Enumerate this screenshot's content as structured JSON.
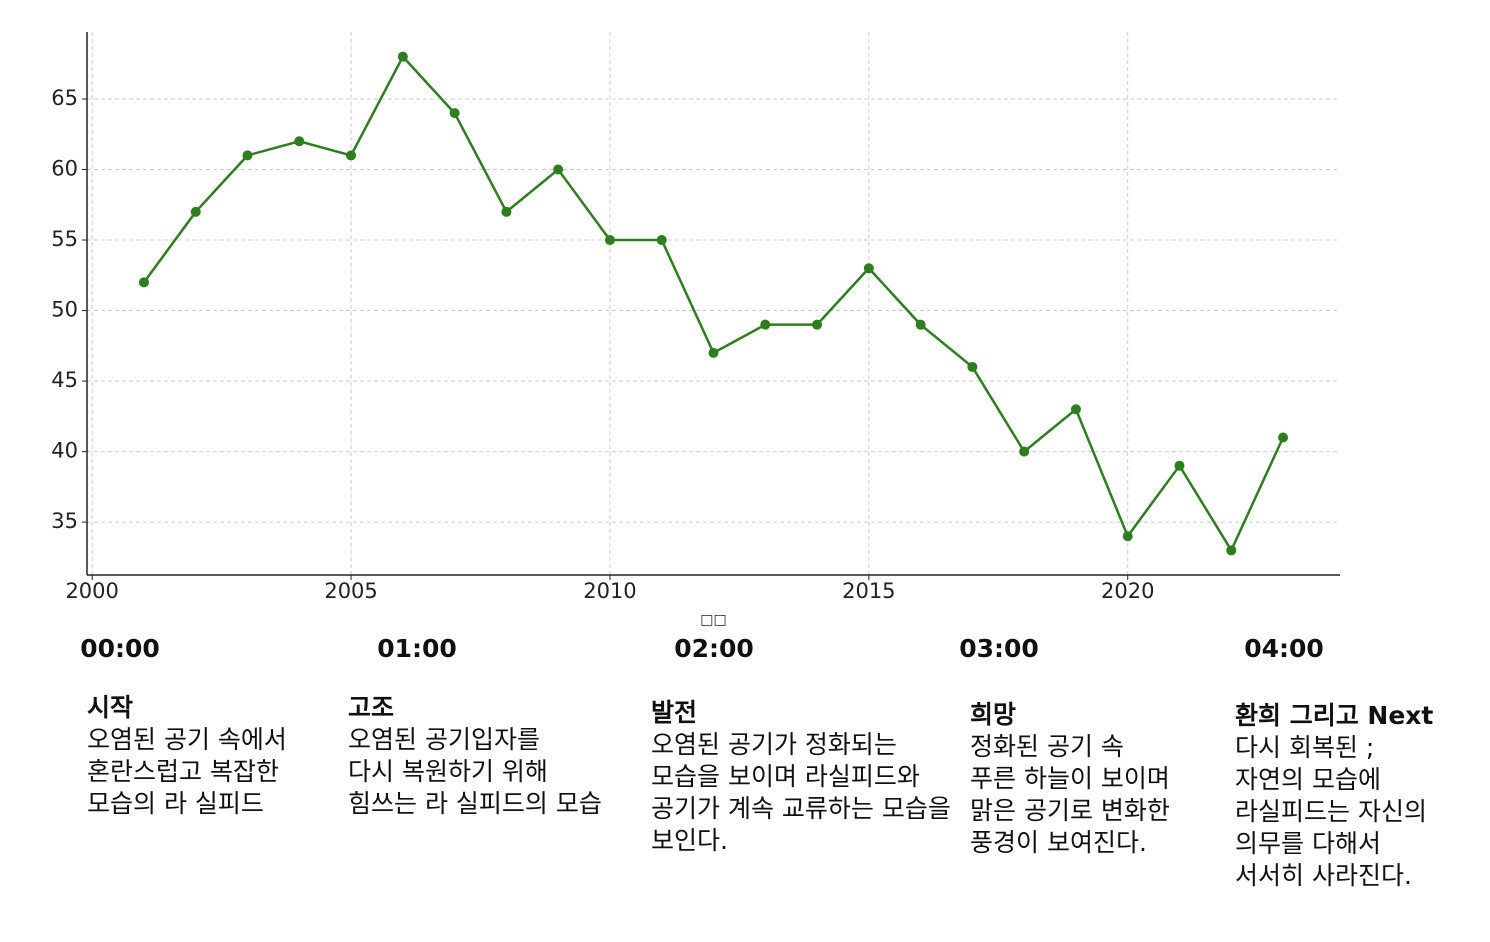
{
  "chart_data": {
    "type": "line",
    "x": [
      2001,
      2002,
      2003,
      2004,
      2005,
      2006,
      2007,
      2008,
      2009,
      2010,
      2011,
      2012,
      2013,
      2014,
      2015,
      2016,
      2017,
      2018,
      2019,
      2020,
      2021,
      2022,
      2023
    ],
    "series": [
      {
        "color": "#2e7d1e",
        "values": [
          52,
          57,
          61,
          62,
          61,
          68,
          64,
          57,
          60,
          55,
          55,
          47,
          49,
          49,
          53,
          49,
          46,
          40,
          43,
          34,
          39,
          33,
          41
        ]
      }
    ],
    "xlabel": "□□",
    "xlim": [
      1999.9,
      2024.1
    ],
    "xticks": [
      2000,
      2005,
      2010,
      2015,
      2020
    ],
    "ylim": [
      31.25,
      69.75
    ],
    "yticks": [
      35,
      40,
      45,
      50,
      55,
      60,
      65
    ],
    "grid": true
  },
  "timeline": [
    {
      "time": "00:00",
      "title": "시작",
      "lines": [
        "오염된 공기 속에서",
        "혼란스럽고 복잡한",
        "모습의 라 실피드"
      ]
    },
    {
      "time": "01:00",
      "title": "고조",
      "lines": [
        "오염된 공기입자를",
        "다시 복원하기 위해",
        "힘쓰는 라 실피드의 모습"
      ]
    },
    {
      "time": "02:00",
      "title": "발전",
      "lines": [
        "오염된 공기가 정화되는",
        "모습을 보이며 라실피드와",
        "공기가 계속 교류하는 모습을",
        "보인다."
      ]
    },
    {
      "time": "03:00",
      "title": "희망",
      "lines": [
        "정화된 공기 속",
        "푸른 하늘이 보이며",
        "맑은 공기로 변화한",
        "풍경이 보여진다."
      ]
    },
    {
      "time": "04:00",
      "title": "환희 그리고 Next",
      "lines": [
        "다시 회복된 ;",
        "자연의 모습에",
        "라실피드는 자신의",
        "의무를 다해서",
        "서서히 사라진다."
      ]
    }
  ]
}
